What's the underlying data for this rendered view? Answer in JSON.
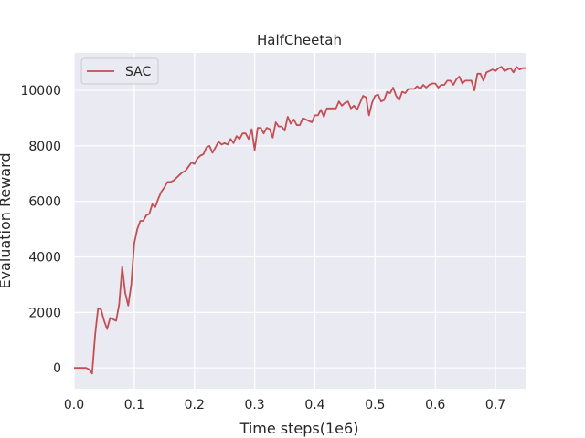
{
  "chart_data": {
    "type": "line",
    "title": "HalfCheetah",
    "xlabel": "Time steps(1e6)",
    "ylabel": "Evaluation Reward",
    "xlim": [
      0.0,
      0.75
    ],
    "ylim": [
      -750,
      11350
    ],
    "xticks": [
      0.0,
      0.1,
      0.2,
      0.3,
      0.4,
      0.5,
      0.6,
      0.7
    ],
    "xtick_labels": [
      "0.0",
      "0.1",
      "0.2",
      "0.3",
      "0.4",
      "0.5",
      "0.6",
      "0.7"
    ],
    "yticks": [
      0,
      2000,
      4000,
      6000,
      8000,
      10000
    ],
    "ytick_labels": [
      "0",
      "2000",
      "4000",
      "6000",
      "8000",
      "10000"
    ],
    "grid": true,
    "legend": "top-left",
    "colors": {
      "background": "#eaeaf2",
      "grid": "#ffffff",
      "line": "#c44e52"
    },
    "series": [
      {
        "name": "SAC",
        "x": [
          0.0,
          0.005,
          0.01,
          0.015,
          0.02,
          0.025,
          0.03,
          0.035,
          0.04,
          0.045,
          0.05,
          0.055,
          0.06,
          0.065,
          0.07,
          0.075,
          0.08,
          0.085,
          0.09,
          0.095,
          0.1,
          0.105,
          0.11,
          0.115,
          0.12,
          0.125,
          0.13,
          0.135,
          0.14,
          0.145,
          0.15,
          0.155,
          0.16,
          0.165,
          0.17,
          0.175,
          0.18,
          0.185,
          0.19,
          0.195,
          0.2,
          0.205,
          0.21,
          0.215,
          0.22,
          0.225,
          0.23,
          0.235,
          0.24,
          0.245,
          0.25,
          0.255,
          0.26,
          0.265,
          0.27,
          0.275,
          0.28,
          0.285,
          0.29,
          0.295,
          0.3,
          0.305,
          0.31,
          0.315,
          0.32,
          0.325,
          0.33,
          0.335,
          0.34,
          0.345,
          0.35,
          0.355,
          0.36,
          0.365,
          0.37,
          0.375,
          0.38,
          0.385,
          0.39,
          0.395,
          0.4,
          0.405,
          0.41,
          0.415,
          0.42,
          0.425,
          0.43,
          0.435,
          0.44,
          0.445,
          0.45,
          0.455,
          0.46,
          0.465,
          0.47,
          0.475,
          0.48,
          0.485,
          0.49,
          0.495,
          0.5,
          0.505,
          0.51,
          0.515,
          0.52,
          0.525,
          0.53,
          0.535,
          0.54,
          0.545,
          0.55,
          0.555,
          0.56,
          0.565,
          0.57,
          0.575,
          0.58,
          0.585,
          0.59,
          0.595,
          0.6,
          0.605,
          0.61,
          0.615,
          0.62,
          0.625,
          0.63,
          0.635,
          0.64,
          0.645,
          0.65,
          0.655,
          0.66,
          0.665,
          0.67,
          0.675,
          0.68,
          0.685,
          0.69,
          0.695,
          0.7,
          0.705,
          0.71,
          0.715,
          0.72,
          0.725,
          0.73,
          0.735,
          0.74,
          0.745,
          0.75
        ],
        "y": [
          0,
          0,
          0,
          0,
          0,
          -50,
          -200,
          1200,
          2150,
          2100,
          1700,
          1400,
          1800,
          1750,
          1700,
          2300,
          3650,
          2700,
          2250,
          3000,
          4500,
          5000,
          5300,
          5300,
          5500,
          5550,
          5900,
          5800,
          6100,
          6350,
          6500,
          6700,
          6700,
          6750,
          6850,
          6950,
          7050,
          7100,
          7250,
          7400,
          7350,
          7550,
          7650,
          7700,
          7950,
          8000,
          7750,
          7950,
          8150,
          8050,
          8100,
          8050,
          8250,
          8100,
          8350,
          8250,
          8450,
          8450,
          8250,
          8600,
          7850,
          8650,
          8650,
          8450,
          8650,
          8600,
          8300,
          8850,
          8700,
          8700,
          8550,
          9050,
          8800,
          8950,
          8750,
          8750,
          9000,
          8950,
          8900,
          8850,
          9100,
          9100,
          9300,
          9050,
          9350,
          9350,
          9350,
          9350,
          9600,
          9450,
          9550,
          9600,
          9350,
          9450,
          9300,
          9550,
          9800,
          9750,
          9100,
          9550,
          9800,
          9850,
          9600,
          9650,
          9950,
          9900,
          10100,
          9800,
          9650,
          9950,
          9900,
          10050,
          10050,
          10050,
          10150,
          10050,
          10200,
          10100,
          10200,
          10250,
          10250,
          10100,
          10200,
          10200,
          10350,
          10350,
          10200,
          10400,
          10500,
          10250,
          10350,
          10350,
          10350,
          10000,
          10600,
          10600,
          10350,
          10650,
          10700,
          10750,
          10700,
          10800,
          10850,
          10700,
          10750,
          10800,
          10650,
          10850,
          10750,
          10800,
          10800
        ]
      }
    ]
  }
}
